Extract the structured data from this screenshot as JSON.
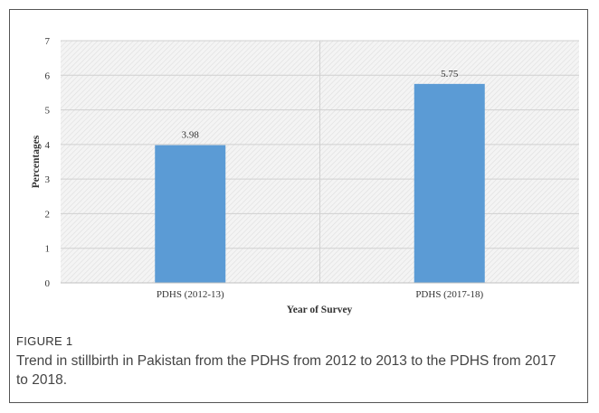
{
  "chart_data": {
    "type": "bar",
    "categories": [
      "PDHS (2012-13)",
      "PDHS (2017-18)"
    ],
    "values": [
      3.98,
      5.75
    ],
    "data_labels": [
      "3.98",
      "5.75"
    ],
    "xlabel": "Year of Survey",
    "ylabel": "Percentages",
    "ylim": [
      0,
      7
    ],
    "yticks": [
      "0",
      "1",
      "2",
      "3",
      "4",
      "5",
      "6",
      "7"
    ],
    "grid": true,
    "bar_color": "#5b9bd5"
  },
  "figure": {
    "label": "FIGURE 1",
    "caption": "Trend in stillbirth in Pakistan from the PDHS from 2012 to 2013 to the PDHS from 2017 to 2018."
  }
}
